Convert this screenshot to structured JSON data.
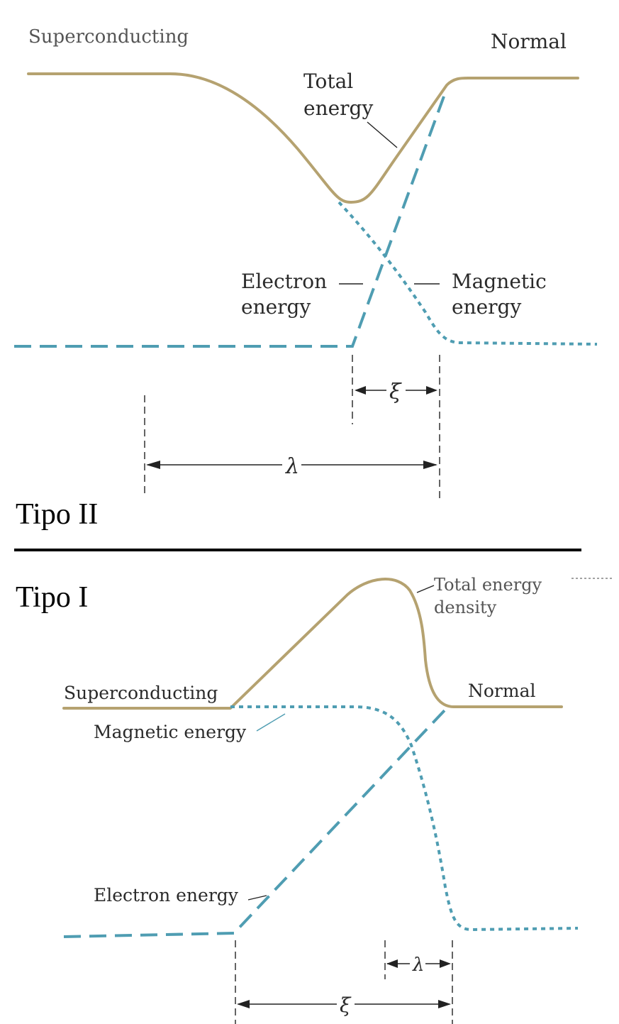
{
  "type2": {
    "section_title": "Tipo II",
    "label_superconducting": "Superconducting",
    "label_normal": "Normal",
    "total_energy_line1": "Total",
    "total_energy_line2": "energy",
    "electron_energy_line1": "Electron",
    "electron_energy_line2": "energy",
    "magnetic_energy_line1": "Magnetic",
    "magnetic_energy_line2": "energy",
    "xi_symbol": "ξ",
    "lambda_symbol": "λ"
  },
  "type1": {
    "section_title": "Tipo I",
    "label_superconducting": "Superconducting",
    "label_normal": "Normal",
    "total_energy_line1": "Total energy",
    "total_energy_line2": "density",
    "magnetic_energy": "Magnetic energy",
    "electron_energy": "Electron energy",
    "lambda_symbol": "λ",
    "xi_symbol": "ξ"
  },
  "colors": {
    "total_energy": "#b5a270",
    "electron_magnetic": "#4f9db2"
  }
}
